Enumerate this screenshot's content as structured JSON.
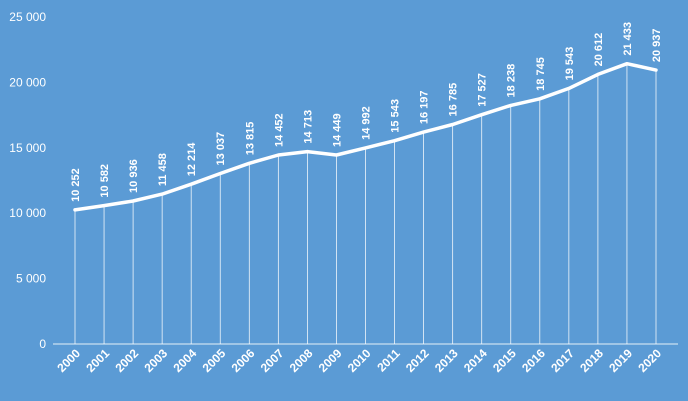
{
  "chart_data": {
    "type": "line",
    "title": "",
    "xlabel": "",
    "ylabel": "",
    "x": [
      "2000",
      "2001",
      "2002",
      "2003",
      "2004",
      "2005",
      "2006",
      "2007",
      "2008",
      "2009",
      "2010",
      "2011",
      "2012",
      "2013",
      "2014",
      "2015",
      "2016",
      "2017",
      "2018",
      "2019",
      "2020"
    ],
    "series": [
      {
        "values": [
          10252,
          10582,
          10936,
          11458,
          12214,
          13037,
          13815,
          14452,
          14713,
          14449,
          14992,
          15543,
          16197,
          16785,
          17527,
          18238,
          18745,
          19543,
          20612,
          21433,
          20937
        ],
        "labels": [
          "10 252",
          "10 582",
          "10 936",
          "11 458",
          "12 214",
          "13 037",
          "13 815",
          "14 452",
          "14 713",
          "14 449",
          "14 992",
          "15 543",
          "16 197",
          "16 785",
          "17 527",
          "18 238",
          "18 745",
          "19 543",
          "20 612",
          "21 433",
          "20 937"
        ]
      }
    ],
    "ylim": [
      0,
      25000
    ],
    "yticks": [
      {
        "value": 0,
        "label": "0"
      },
      {
        "value": 5000,
        "label": "5 000"
      },
      {
        "value": 10000,
        "label": "10 000"
      },
      {
        "value": 15000,
        "label": "15 000"
      },
      {
        "value": 20000,
        "label": "20 000"
      },
      {
        "value": 25000,
        "label": "25 000"
      }
    ],
    "grid": false,
    "drop_lines": true,
    "colors": {
      "background": "#5b9bd5",
      "line": "#ffffff",
      "text": "#ffffff"
    }
  }
}
